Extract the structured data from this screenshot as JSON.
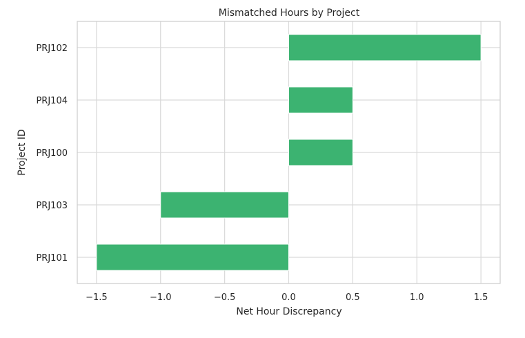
{
  "chart_data": {
    "type": "bar",
    "orientation": "horizontal",
    "title": "Mismatched Hours by Project",
    "xlabel": "Net Hour Discrepancy",
    "ylabel": "Project ID",
    "categories": [
      "PRJ102",
      "PRJ104",
      "PRJ100",
      "PRJ103",
      "PRJ101"
    ],
    "values": [
      1.5,
      0.5,
      0.5,
      -1.0,
      -1.5
    ],
    "xlim": [
      -1.65,
      1.65
    ],
    "xticks": [
      -1.5,
      -1.0,
      -0.5,
      0.0,
      0.5,
      1.0,
      1.5
    ],
    "xtick_labels": [
      "−1.5",
      "−1.0",
      "−0.5",
      "0.0",
      "0.5",
      "1.0",
      "1.5"
    ],
    "grid": true,
    "bar_color": "#3cb371",
    "grid_color": "#d9d9d9",
    "spine_color": "#cccccc"
  }
}
